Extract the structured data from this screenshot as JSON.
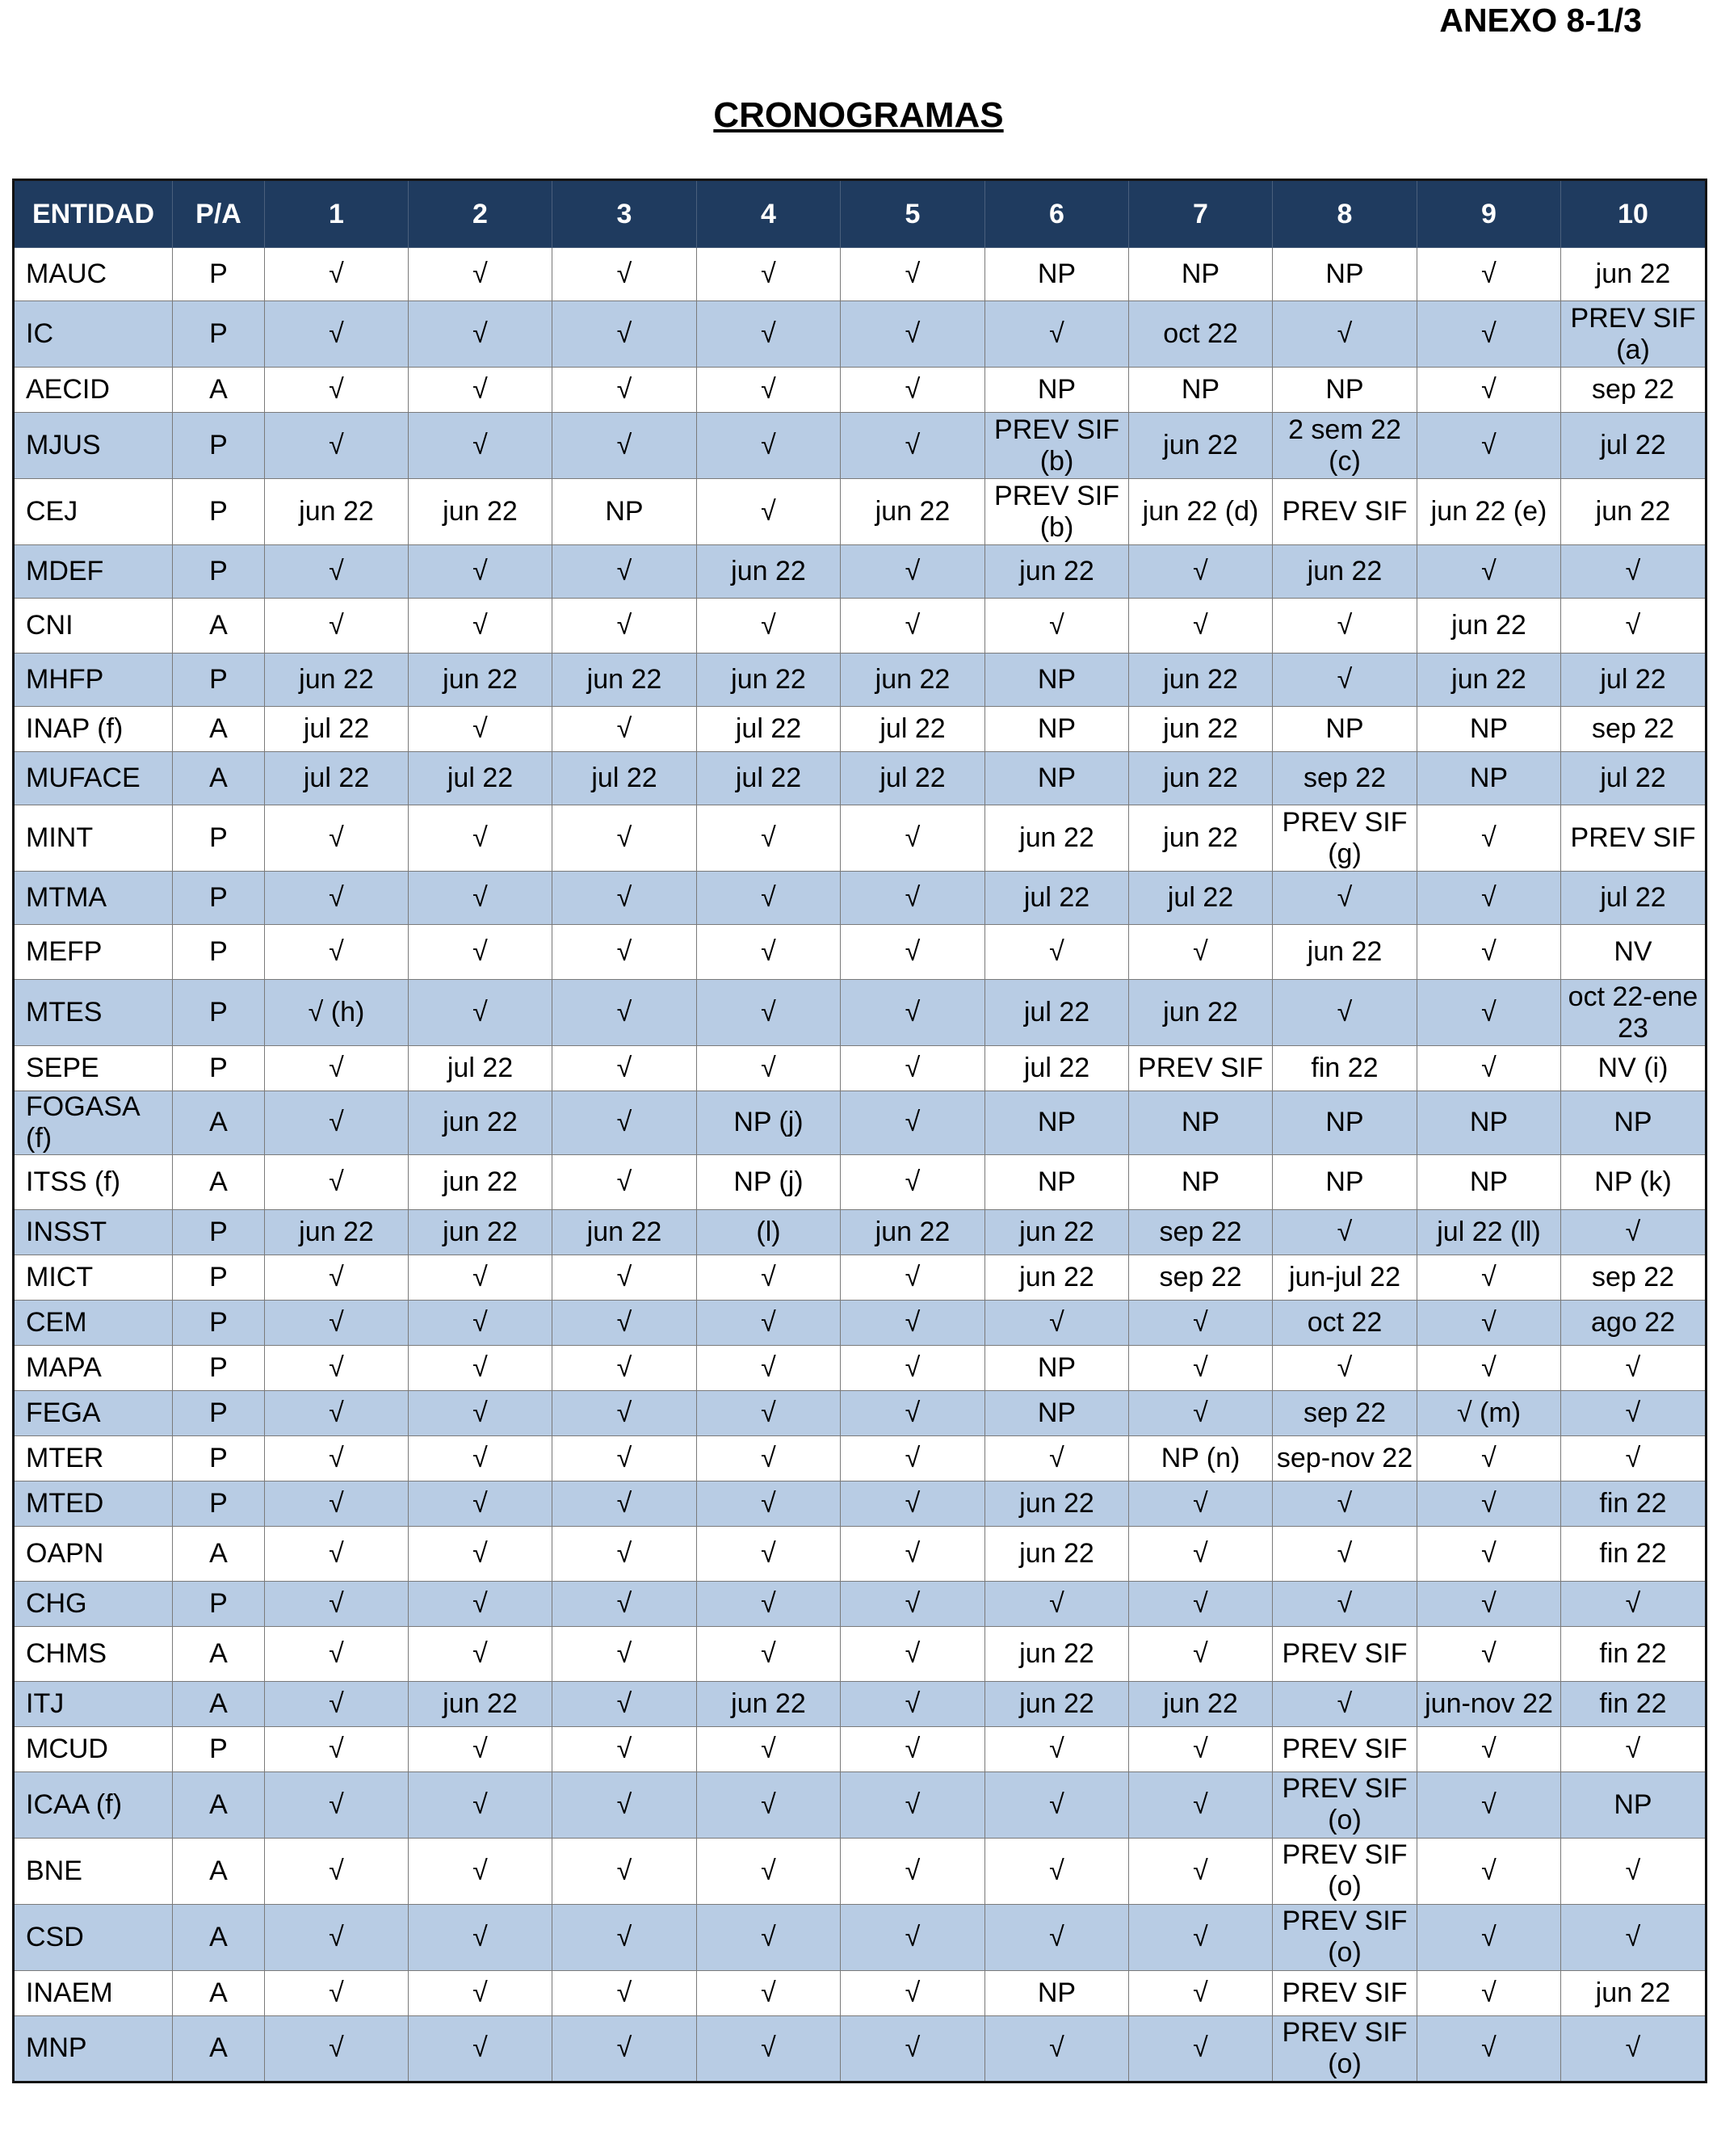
{
  "annex": "ANEXO 8-1/3",
  "title": "CRONOGRAMAS",
  "headers": [
    "ENTIDAD",
    "P/A",
    "1",
    "2",
    "3",
    "4",
    "5",
    "6",
    "7",
    "8",
    "9",
    "10"
  ],
  "rows": [
    {
      "entidad": "MAUC",
      "pa": "P",
      "cols": [
        "√",
        "√",
        "√",
        "√",
        "√",
        "NP",
        "NP",
        "NP",
        "√",
        "jun 22"
      ]
    },
    {
      "entidad": "IC",
      "pa": "P",
      "cols": [
        "√",
        "√",
        "√",
        "√",
        "√",
        "√",
        "oct 22",
        "√",
        "√",
        "PREV SIF (a)"
      ]
    },
    {
      "entidad": "AECID",
      "pa": "A",
      "cols": [
        "√",
        "√",
        "√",
        "√",
        "√",
        "NP",
        "NP",
        "NP",
        "√",
        "sep 22"
      ]
    },
    {
      "entidad": "MJUS",
      "pa": "P",
      "cols": [
        "√",
        "√",
        "√",
        "√",
        "√",
        "PREV SIF (b)",
        "jun 22",
        "2 sem 22 (c)",
        "√",
        "jul 22"
      ]
    },
    {
      "entidad": "CEJ",
      "pa": "P",
      "cols": [
        "jun 22",
        "jun 22",
        "NP",
        "√",
        "jun 22",
        "PREV SIF (b)",
        "jun 22 (d)",
        "PREV SIF",
        "jun 22 (e)",
        "jun 22"
      ]
    },
    {
      "entidad": "MDEF",
      "pa": "P",
      "cols": [
        "√",
        "√",
        "√",
        "jun 22",
        "√",
        "jun 22",
        "√",
        "jun 22",
        "√",
        "√"
      ]
    },
    {
      "entidad": "CNI",
      "pa": "A",
      "cols": [
        "√",
        "√",
        "√",
        "√",
        "√",
        "√",
        "√",
        "√",
        "jun 22",
        "√"
      ]
    },
    {
      "entidad": "MHFP",
      "pa": "P",
      "cols": [
        "jun 22",
        "jun 22",
        "jun 22",
        "jun 22",
        "jun 22",
        "NP",
        "jun 22",
        "√",
        "jun 22",
        "jul  22"
      ]
    },
    {
      "entidad": "INAP (f)",
      "pa": "A",
      "cols": [
        "jul 22",
        "√",
        "√",
        "jul  22",
        "jul  22",
        "NP",
        "jun 22",
        "NP",
        "NP",
        "sep 22"
      ]
    },
    {
      "entidad": "MUFACE",
      "pa": "A",
      "cols": [
        "jul 22",
        "jul 22",
        "jul  22",
        "jul  22",
        "jul  22",
        "NP",
        "jun 22",
        "sep 22",
        "NP",
        "jul  22"
      ]
    },
    {
      "entidad": "MINT",
      "pa": "P",
      "cols": [
        "√",
        "√",
        "√",
        "√",
        "√",
        "jun 22",
        "jun 22",
        "PREV SIF (g)",
        "√",
        "PREV SIF"
      ]
    },
    {
      "entidad": "MTMA",
      "pa": "P",
      "cols": [
        "√",
        "√",
        "√",
        "√",
        "√",
        "jul  22",
        "jul  22",
        "√",
        "√",
        "jul  22"
      ]
    },
    {
      "entidad": "MEFP",
      "pa": "P",
      "cols": [
        "√",
        "√",
        "√",
        "√",
        "√",
        "√",
        "√",
        "jun 22",
        "√",
        "NV"
      ]
    },
    {
      "entidad": "MTES",
      "pa": "P",
      "cols": [
        "√ (h)",
        "√",
        "√",
        "√",
        "√",
        "jul 22",
        "jun 22",
        "√",
        "√",
        "oct 22-ene 23"
      ]
    },
    {
      "entidad": "SEPE",
      "pa": "P",
      "cols": [
        "√",
        "jul 22",
        "√",
        "√",
        "√",
        "jul 22",
        "PREV SIF",
        "fin 22",
        "√",
        "NV (i)"
      ]
    },
    {
      "entidad": "FOGASA (f)",
      "pa": "A",
      "cols": [
        "√",
        "jun 22",
        "√",
        "NP (j)",
        "√",
        "NP",
        "NP",
        "NP",
        "NP",
        "NP"
      ]
    },
    {
      "entidad": "ITSS (f)",
      "pa": "A",
      "cols": [
        "√",
        "jun 22",
        "√",
        "NP (j)",
        "√",
        "NP",
        "NP",
        "NP",
        "NP",
        "NP (k)"
      ]
    },
    {
      "entidad": "INSST",
      "pa": "P",
      "cols": [
        "jun 22",
        "jun 22",
        "jun 22",
        "(l)",
        "jun 22",
        "jun 22",
        "sep 22",
        "√",
        "jul 22 (ll)",
        "√"
      ]
    },
    {
      "entidad": "MICT",
      "pa": "P",
      "cols": [
        "√",
        "√",
        "√",
        "√",
        "√",
        "jun 22",
        "sep 22",
        "jun-jul 22",
        "√",
        "sep 22"
      ]
    },
    {
      "entidad": "CEM",
      "pa": "P",
      "cols": [
        "√",
        "√",
        "√",
        "√",
        "√",
        "√",
        "√",
        "oct 22",
        "√",
        "ago 22"
      ]
    },
    {
      "entidad": "MAPA",
      "pa": "P",
      "cols": [
        "√",
        "√",
        "√",
        "√",
        "√",
        "NP",
        "√",
        "√",
        "√",
        "√"
      ]
    },
    {
      "entidad": "FEGA",
      "pa": "P",
      "cols": [
        "√",
        "√",
        "√",
        "√",
        "√",
        "NP",
        "√",
        "sep 22",
        "√ (m)",
        "√"
      ]
    },
    {
      "entidad": "MTER",
      "pa": "P",
      "cols": [
        "√",
        "√",
        "√",
        "√",
        "√",
        "√",
        "NP (n)",
        "sep-nov 22",
        "√",
        "√"
      ]
    },
    {
      "entidad": "MTED",
      "pa": "P",
      "cols": [
        "√",
        "√",
        "√",
        "√",
        "√",
        "jun 22",
        "√",
        "√",
        "√",
        "fin 22"
      ]
    },
    {
      "entidad": "OAPN",
      "pa": "A",
      "cols": [
        "√",
        "√",
        "√",
        "√",
        "√",
        "jun 22",
        "√",
        "√",
        "√",
        "fin 22"
      ]
    },
    {
      "entidad": "CHG",
      "pa": "P",
      "cols": [
        "√",
        "√",
        "√",
        "√",
        "√",
        "√",
        "√",
        "√",
        "√",
        "√"
      ]
    },
    {
      "entidad": "CHMS",
      "pa": "A",
      "cols": [
        "√",
        "√",
        "√",
        "√",
        "√",
        "jun 22",
        "√",
        "PREV SIF",
        "√",
        "fin 22"
      ]
    },
    {
      "entidad": "ITJ",
      "pa": "A",
      "cols": [
        "√",
        "jun 22",
        "√",
        "jun 22",
        "√",
        "jun 22",
        "jun 22",
        "√",
        "jun-nov 22",
        "fin 22"
      ]
    },
    {
      "entidad": "MCUD",
      "pa": "P",
      "cols": [
        "√",
        "√",
        "√",
        "√",
        "√",
        "√",
        "√",
        "PREV SIF",
        "√",
        "√"
      ]
    },
    {
      "entidad": "ICAA (f)",
      "pa": "A",
      "cols": [
        "√",
        "√",
        "√",
        "√",
        "√",
        "√",
        "√",
        "PREV SIF (o)",
        "√",
        "NP"
      ]
    },
    {
      "entidad": "BNE",
      "pa": "A",
      "cols": [
        "√",
        "√",
        "√",
        "√",
        "√",
        "√",
        "√",
        "PREV SIF (o)",
        "√",
        "√"
      ]
    },
    {
      "entidad": "CSD",
      "pa": "A",
      "cols": [
        "√",
        "√",
        "√",
        "√",
        "√",
        "√",
        "√",
        "PREV SIF (o)",
        "√",
        "√"
      ]
    },
    {
      "entidad": "INAEM",
      "pa": "A",
      "cols": [
        "√",
        "√",
        "√",
        "√",
        "√",
        "NP",
        "√",
        "PREV SIF",
        "√",
        "jun 22"
      ]
    },
    {
      "entidad": "MNP",
      "pa": "A",
      "cols": [
        "√",
        "√",
        "√",
        "√",
        "√",
        "√",
        "√",
        "PREV SIF (o)",
        "√",
        "√"
      ]
    }
  ]
}
